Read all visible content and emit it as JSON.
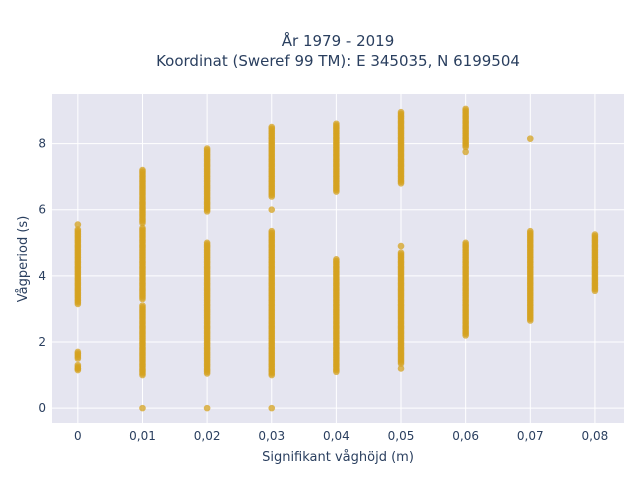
{
  "chart_data": {
    "type": "scatter",
    "title_line1": "År 1979 - 2019",
    "title_line2": "Koordinat (Sweref 99 TM): E 345035, N 6199504",
    "xlabel": "Signifikant våghöjd (m)",
    "ylabel": "Vågperiod (s)",
    "x_ticks": [
      {
        "value": 0,
        "label": "0"
      },
      {
        "value": 0.01,
        "label": "0,01"
      },
      {
        "value": 0.02,
        "label": "0,02"
      },
      {
        "value": 0.03,
        "label": "0,03"
      },
      {
        "value": 0.04,
        "label": "0,04"
      },
      {
        "value": 0.05,
        "label": "0,05"
      },
      {
        "value": 0.06,
        "label": "0,06"
      },
      {
        "value": 0.07,
        "label": "0,07"
      },
      {
        "value": 0.08,
        "label": "0,08"
      }
    ],
    "y_ticks": [
      {
        "value": 0,
        "label": "0"
      },
      {
        "value": 2,
        "label": "2"
      },
      {
        "value": 4,
        "label": "4"
      },
      {
        "value": 6,
        "label": "6"
      },
      {
        "value": 8,
        "label": "8"
      }
    ],
    "xlim": [
      -0.004,
      0.0845
    ],
    "ylim": [
      -0.45,
      9.5
    ],
    "grid": true,
    "marker_color": "#d4a21f",
    "background_color": "#e5e5f0",
    "grid_color": "#ffffff",
    "series": [
      {
        "x": 0,
        "ranges": [
          [
            3.15,
            5.4
          ],
          [
            1.5,
            1.7
          ],
          [
            1.15,
            1.3
          ]
        ],
        "points": [
          5.55,
          1.2
        ]
      },
      {
        "x": 0.01,
        "ranges": [
          [
            5.6,
            7.2
          ],
          [
            3.3,
            5.45
          ],
          [
            1.0,
            3.1
          ]
        ],
        "points": [
          0.0
        ]
      },
      {
        "x": 0.02,
        "ranges": [
          [
            5.95,
            7.85
          ],
          [
            1.05,
            5.0
          ]
        ],
        "points": [
          0.0
        ]
      },
      {
        "x": 0.03,
        "ranges": [
          [
            6.4,
            8.5
          ],
          [
            1.0,
            5.35
          ]
        ],
        "points": [
          6.0,
          0.0
        ]
      },
      {
        "x": 0.04,
        "ranges": [
          [
            6.55,
            8.6
          ],
          [
            1.1,
            4.5
          ]
        ],
        "points": []
      },
      {
        "x": 0.05,
        "ranges": [
          [
            6.8,
            8.95
          ],
          [
            1.35,
            4.7
          ]
        ],
        "points": [
          4.9,
          1.2
        ]
      },
      {
        "x": 0.06,
        "ranges": [
          [
            7.9,
            9.05
          ],
          [
            2.2,
            5.0
          ]
        ],
        "points": [
          7.75
        ]
      },
      {
        "x": 0.07,
        "ranges": [
          [
            2.65,
            5.35
          ]
        ],
        "points": [
          8.15
        ]
      },
      {
        "x": 0.08,
        "ranges": [
          [
            3.55,
            5.25
          ]
        ],
        "points": []
      }
    ]
  }
}
